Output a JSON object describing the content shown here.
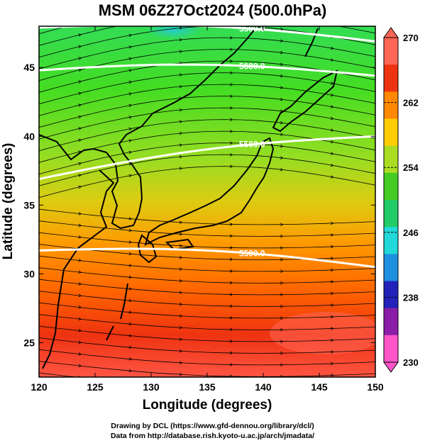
{
  "title": "MSM 06Z27Oct2024 (500.0hPa)",
  "x_axis": {
    "label": "Longitude (degrees)",
    "range": [
      120,
      150
    ],
    "ticks": [
      120,
      125,
      130,
      135,
      140,
      145,
      150
    ]
  },
  "y_axis": {
    "label": "Latitude  (degrees)",
    "range": [
      22.5,
      48
    ],
    "ticks": [
      25,
      30,
      35,
      40,
      45
    ]
  },
  "colorbar": {
    "range": [
      230,
      270
    ],
    "ticks": [
      230,
      238,
      246,
      254,
      262,
      270
    ],
    "colors": [
      "#ff55c8",
      "#8a1ea8",
      "#2222bb",
      "#1f8fe0",
      "#22d8d8",
      "#22cc66",
      "#44cc22",
      "#aadd22",
      "#ffcc00",
      "#ff8800",
      "#ee3311",
      "#ff6655"
    ]
  },
  "contours": [
    {
      "label": "5500.0",
      "latitude_at_120": 31.7,
      "latitude_at_150": 30.5
    },
    {
      "label": "5560.0",
      "latitude_at_120": 36.9,
      "latitude_at_150": 40.0
    },
    {
      "label": "5680.0",
      "latitude_at_120": 44.8,
      "latitude_at_150": 44.4
    },
    {
      "label": "5500.0",
      "latitude_at_120": 47.9,
      "latitude_at_150": 46.9
    }
  ],
  "credits": {
    "line1": "Drawing by DCL (https://www.gfd-dennou.org/library/dcl/)",
    "line2": "Data from http://database.rish.kyoto-u.ac.jp/arch/jmadata/"
  },
  "colors": {
    "contour": "#ffffff",
    "coastline": "#000000",
    "streamline": "#000000"
  }
}
